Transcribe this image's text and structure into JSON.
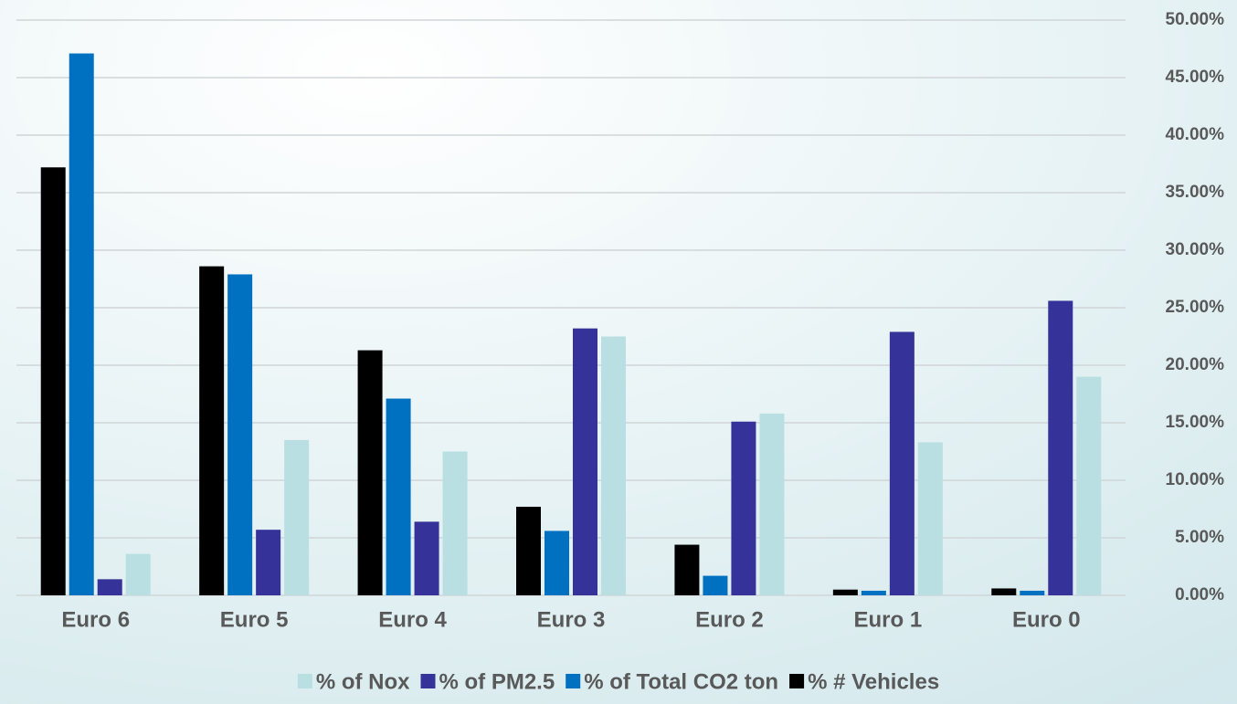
{
  "chart_data": {
    "type": "bar",
    "categories": [
      "Euro 6",
      "Euro 5",
      "Euro 4",
      "Euro 3",
      "Euro 2",
      "Euro 1",
      "Euro 0"
    ],
    "series": [
      {
        "name": "% of Nox",
        "color": "#b9dfe2",
        "values": [
          3.6,
          13.5,
          12.5,
          22.5,
          15.8,
          13.3,
          19.0
        ]
      },
      {
        "name": "% of PM2.5",
        "color": "#35329a",
        "values": [
          1.4,
          5.7,
          6.4,
          23.2,
          15.1,
          22.9,
          25.6
        ]
      },
      {
        "name": "% of Total CO2 ton",
        "color": "#0070c0",
        "values": [
          47.1,
          27.9,
          17.1,
          5.6,
          1.7,
          0.4,
          0.4
        ]
      },
      {
        "name": "% # Vehicles",
        "color": "#000000",
        "values": [
          37.2,
          28.6,
          21.3,
          7.7,
          4.4,
          0.5,
          0.6
        ]
      }
    ],
    "ylim": [
      0,
      50
    ],
    "yticks": [
      {
        "value": 0,
        "label": "0.00%"
      },
      {
        "value": 5,
        "label": "5.00%"
      },
      {
        "value": 10,
        "label": "10.00%"
      },
      {
        "value": 15,
        "label": "15.00%"
      },
      {
        "value": 20,
        "label": "20.00%"
      },
      {
        "value": 25,
        "label": "25.00%"
      },
      {
        "value": 30,
        "label": "30.00%"
      },
      {
        "value": 35,
        "label": "35.00%"
      },
      {
        "value": 40,
        "label": "40.00%"
      },
      {
        "value": 45,
        "label": "45.00%"
      },
      {
        "value": 50,
        "label": "50.00%"
      }
    ],
    "grid": true,
    "legend": "bottom"
  }
}
